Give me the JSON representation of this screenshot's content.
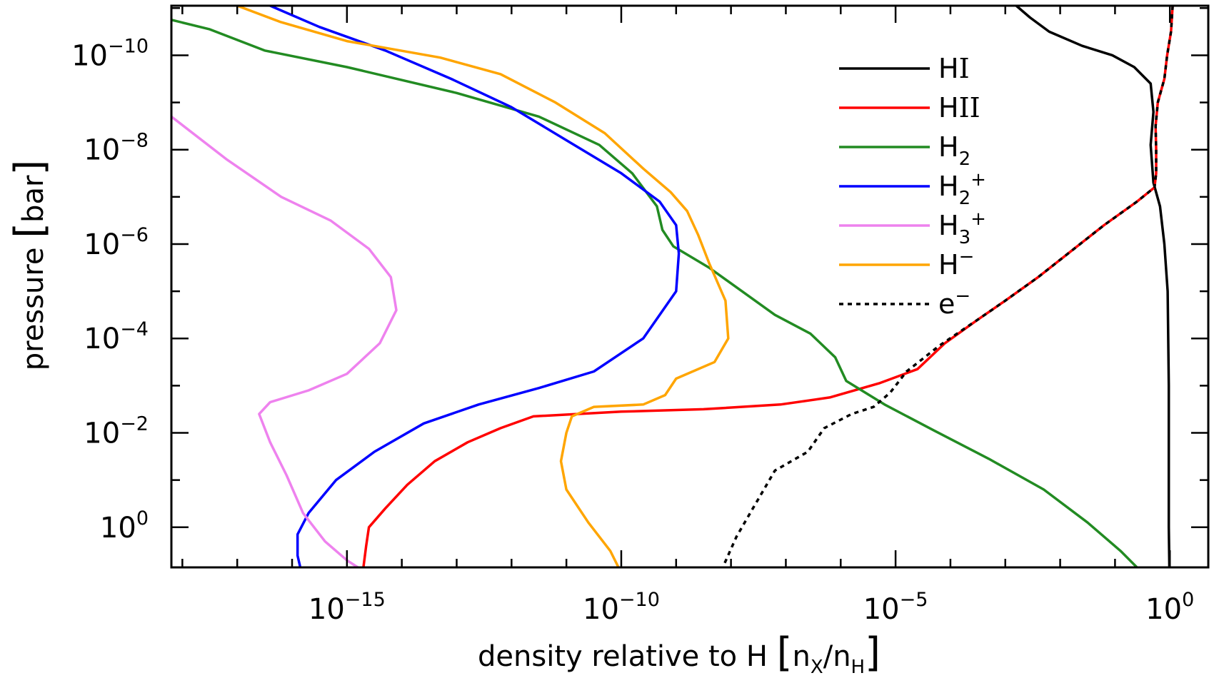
{
  "chart_data": {
    "type": "line",
    "title": "",
    "xlabel": {
      "main": "density relative to H ",
      "bracket_open": "[",
      "n1": "n",
      "n1_sub": "X",
      "slash": "/",
      "n2": "n",
      "n2_sub": "H",
      "bracket_close": "]"
    },
    "ylabel": {
      "main": "pressure ",
      "bracket_open": "[",
      "unit": "bar",
      "bracket_close": "]"
    },
    "x_scale": "log",
    "y_scale": "log",
    "y_reversed": true,
    "xlim_log10": [
      -18.2,
      0.7
    ],
    "ylim_log10": [
      -11.05,
      0.85
    ],
    "x_tick_labels": [
      {
        "log": -15,
        "base": "10",
        "exp": "−15"
      },
      {
        "log": -10,
        "base": "10",
        "exp": "−10"
      },
      {
        "log": -5,
        "base": "10",
        "exp": "−5"
      },
      {
        "log": 0,
        "base": "10",
        "exp": "0"
      }
    ],
    "y_tick_labels": [
      {
        "log": -10,
        "base": "10",
        "exp": "−10"
      },
      {
        "log": -8,
        "base": "10",
        "exp": "−8"
      },
      {
        "log": -6,
        "base": "10",
        "exp": "−6"
      },
      {
        "log": -4,
        "base": "10",
        "exp": "−4"
      },
      {
        "log": -2,
        "base": "10",
        "exp": "−2"
      },
      {
        "log": 0,
        "base": "10",
        "exp": "0"
      }
    ],
    "series": [
      {
        "name": "HI",
        "label_main": "H",
        "label_roman": "I",
        "label_sub": "",
        "label_sup": "",
        "color": "#000000",
        "dash": false,
        "points": [
          [
            -2.8,
            -11.05
          ],
          [
            -2.55,
            -10.8
          ],
          [
            -2.2,
            -10.5
          ],
          [
            -1.6,
            -10.2
          ],
          [
            -1.05,
            -10.0
          ],
          [
            -0.65,
            -9.75
          ],
          [
            -0.35,
            -9.4
          ],
          [
            -0.3,
            -8.8
          ],
          [
            -0.35,
            -8.1
          ],
          [
            -0.3,
            -7.3
          ],
          [
            -0.18,
            -6.8
          ],
          [
            -0.1,
            -6.0
          ],
          [
            -0.04,
            -5.0
          ],
          [
            -0.02,
            -3.0
          ],
          [
            -0.02,
            0.0
          ],
          [
            -0.01,
            0.85
          ]
        ]
      },
      {
        "name": "HII",
        "label_main": "H",
        "label_roman": "II",
        "label_sub": "",
        "label_sup": "",
        "color": "#ff0000",
        "dash": false,
        "points": [
          [
            0.05,
            -11.05
          ],
          [
            0.02,
            -10.5
          ],
          [
            -0.05,
            -10.0
          ],
          [
            -0.1,
            -9.5
          ],
          [
            -0.22,
            -9.0
          ],
          [
            -0.26,
            -8.5
          ],
          [
            -0.25,
            -8.0
          ],
          [
            -0.25,
            -7.5
          ],
          [
            -0.28,
            -7.2
          ],
          [
            -0.6,
            -6.9
          ],
          [
            -1.2,
            -6.4
          ],
          [
            -1.8,
            -5.85
          ],
          [
            -2.4,
            -5.3
          ],
          [
            -3.0,
            -4.8
          ],
          [
            -3.5,
            -4.4
          ],
          [
            -4.1,
            -3.9
          ],
          [
            -4.6,
            -3.35
          ],
          [
            -5.3,
            -3.05
          ],
          [
            -6.2,
            -2.75
          ],
          [
            -7.1,
            -2.6
          ],
          [
            -8.5,
            -2.5
          ],
          [
            -10.0,
            -2.45
          ],
          [
            -11.6,
            -2.35
          ],
          [
            -12.2,
            -2.1
          ],
          [
            -12.8,
            -1.8
          ],
          [
            -13.4,
            -1.4
          ],
          [
            -13.9,
            -0.9
          ],
          [
            -14.3,
            -0.4
          ],
          [
            -14.6,
            0.0
          ],
          [
            -14.65,
            0.4
          ],
          [
            -14.7,
            0.85
          ]
        ]
      },
      {
        "name": "H2",
        "label_main": "H",
        "label_roman": "",
        "label_sub": "2",
        "label_sup": "",
        "color": "#228b22",
        "dash": false,
        "points": [
          [
            -18.2,
            -10.75
          ],
          [
            -17.5,
            -10.55
          ],
          [
            -16.5,
            -10.1
          ],
          [
            -15.0,
            -9.75
          ],
          [
            -13.0,
            -9.2
          ],
          [
            -11.5,
            -8.7
          ],
          [
            -10.4,
            -8.1
          ],
          [
            -9.8,
            -7.5
          ],
          [
            -9.35,
            -6.8
          ],
          [
            -9.25,
            -6.3
          ],
          [
            -9.05,
            -5.95
          ],
          [
            -8.4,
            -5.5
          ],
          [
            -7.8,
            -5.0
          ],
          [
            -7.2,
            -4.5
          ],
          [
            -6.55,
            -4.1
          ],
          [
            -6.1,
            -3.6
          ],
          [
            -5.9,
            -3.1
          ],
          [
            -5.2,
            -2.6
          ],
          [
            -4.3,
            -2.05
          ],
          [
            -3.3,
            -1.45
          ],
          [
            -2.3,
            -0.8
          ],
          [
            -1.5,
            -0.1
          ],
          [
            -0.9,
            0.5
          ],
          [
            -0.6,
            0.85
          ]
        ]
      },
      {
        "name": "H2+",
        "label_main": "H",
        "label_roman": "",
        "label_sub": "2",
        "label_sup": "+",
        "color": "#0000ff",
        "dash": false,
        "points": [
          [
            -16.4,
            -11.05
          ],
          [
            -15.5,
            -10.6
          ],
          [
            -14.3,
            -10.1
          ],
          [
            -13.1,
            -9.5
          ],
          [
            -12.0,
            -8.9
          ],
          [
            -11.0,
            -8.2
          ],
          [
            -10.0,
            -7.5
          ],
          [
            -9.3,
            -6.9
          ],
          [
            -9.0,
            -6.4
          ],
          [
            -8.95,
            -5.8
          ],
          [
            -9.0,
            -5.0
          ],
          [
            -9.6,
            -4.0
          ],
          [
            -10.5,
            -3.3
          ],
          [
            -11.5,
            -2.95
          ],
          [
            -12.6,
            -2.6
          ],
          [
            -13.6,
            -2.2
          ],
          [
            -14.5,
            -1.6
          ],
          [
            -15.2,
            -1.0
          ],
          [
            -15.7,
            -0.3
          ],
          [
            -15.9,
            0.15
          ],
          [
            -15.9,
            0.6
          ],
          [
            -15.85,
            0.85
          ]
        ]
      },
      {
        "name": "H3+",
        "label_main": "H",
        "label_roman": "",
        "label_sub": "3",
        "label_sup": "+",
        "color": "#ee82ee",
        "dash": false,
        "points": [
          [
            -18.2,
            -8.7
          ],
          [
            -17.2,
            -7.8
          ],
          [
            -16.2,
            -7.0
          ],
          [
            -15.3,
            -6.5
          ],
          [
            -14.6,
            -5.9
          ],
          [
            -14.2,
            -5.3
          ],
          [
            -14.1,
            -4.6
          ],
          [
            -14.4,
            -3.9
          ],
          [
            -15.0,
            -3.25
          ],
          [
            -15.7,
            -2.9
          ],
          [
            -16.4,
            -2.65
          ],
          [
            -16.6,
            -2.4
          ],
          [
            -16.4,
            -1.8
          ],
          [
            -16.1,
            -1.1
          ],
          [
            -15.8,
            -0.3
          ],
          [
            -15.4,
            0.3
          ],
          [
            -15.0,
            0.7
          ],
          [
            -14.8,
            0.85
          ]
        ]
      },
      {
        "name": "H-",
        "label_main": "H",
        "label_roman": "",
        "label_sub": "",
        "label_sup": "−",
        "color": "#ffa500",
        "dash": false,
        "points": [
          [
            -17.0,
            -11.05
          ],
          [
            -16.2,
            -10.7
          ],
          [
            -15.0,
            -10.3
          ],
          [
            -13.3,
            -9.95
          ],
          [
            -12.2,
            -9.6
          ],
          [
            -11.2,
            -9.0
          ],
          [
            -10.3,
            -8.35
          ],
          [
            -9.6,
            -7.6
          ],
          [
            -9.1,
            -7.1
          ],
          [
            -8.8,
            -6.7
          ],
          [
            -8.6,
            -6.2
          ],
          [
            -8.4,
            -5.6
          ],
          [
            -8.1,
            -4.8
          ],
          [
            -8.05,
            -4.0
          ],
          [
            -8.3,
            -3.5
          ],
          [
            -9.0,
            -3.15
          ],
          [
            -9.2,
            -2.8
          ],
          [
            -9.6,
            -2.6
          ],
          [
            -10.5,
            -2.55
          ],
          [
            -10.9,
            -2.35
          ],
          [
            -11.0,
            -2.0
          ],
          [
            -11.1,
            -1.4
          ],
          [
            -11.0,
            -0.8
          ],
          [
            -10.6,
            -0.1
          ],
          [
            -10.2,
            0.5
          ],
          [
            -10.05,
            0.85
          ]
        ]
      },
      {
        "name": "e-",
        "label_main": "e",
        "label_roman": "",
        "label_sub": "",
        "label_sup": "−",
        "color": "#000000",
        "dash": true,
        "points": [
          [
            0.05,
            -11.05
          ],
          [
            0.02,
            -10.5
          ],
          [
            -0.05,
            -10.0
          ],
          [
            -0.1,
            -9.5
          ],
          [
            -0.22,
            -9.0
          ],
          [
            -0.26,
            -8.5
          ],
          [
            -0.25,
            -8.0
          ],
          [
            -0.25,
            -7.5
          ],
          [
            -0.28,
            -7.2
          ],
          [
            -0.6,
            -6.9
          ],
          [
            -1.2,
            -6.4
          ],
          [
            -1.8,
            -5.85
          ],
          [
            -2.4,
            -5.3
          ],
          [
            -3.0,
            -4.8
          ],
          [
            -3.5,
            -4.4
          ],
          [
            -4.2,
            -3.85
          ],
          [
            -4.8,
            -3.3
          ],
          [
            -5.1,
            -2.85
          ],
          [
            -5.4,
            -2.55
          ],
          [
            -5.8,
            -2.4
          ],
          [
            -6.3,
            -2.1
          ],
          [
            -6.6,
            -1.6
          ],
          [
            -7.2,
            -1.2
          ],
          [
            -7.4,
            -0.8
          ],
          [
            -7.6,
            -0.4
          ],
          [
            -7.9,
            0.2
          ],
          [
            -8.15,
            0.85
          ]
        ]
      }
    ]
  }
}
